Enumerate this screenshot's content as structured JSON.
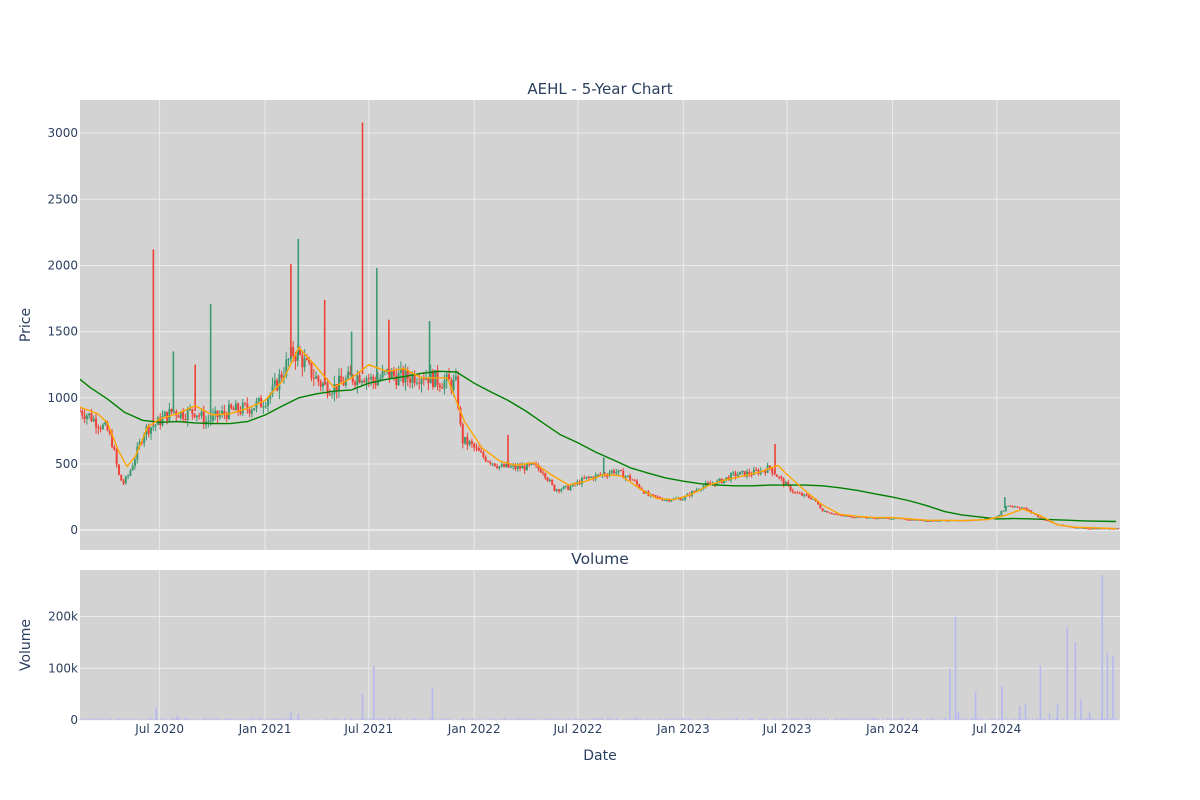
{
  "chart_data": {
    "title": "AEHL - 5-Year Chart",
    "type": "candlestick",
    "grid": true,
    "colors": {
      "plot_bg": "#d3d3d3",
      "grid": "#ebebeb",
      "increasing": "#3d9970",
      "decreasing": "#ef4136",
      "ma_short": "#ffa500",
      "ma_long": "#008000",
      "volume": "#b8b8f0",
      "text": "#2a3f5f"
    },
    "price_panel": {
      "ylabel": "Price",
      "ylim": [
        -150,
        3250
      ],
      "yticks": [
        0,
        500,
        1000,
        1500,
        2000,
        2500,
        3000
      ],
      "ytick_labels": [
        "0",
        "500",
        "1000",
        "1500",
        "2000",
        "2500",
        "3000"
      ],
      "close_series": [
        [
          "2020-02-13",
          900
        ],
        [
          "2020-02-28",
          870
        ],
        [
          "2020-03-15",
          810
        ],
        [
          "2020-03-31",
          760
        ],
        [
          "2020-04-10",
          650
        ],
        [
          "2020-04-20",
          420
        ],
        [
          "2020-04-28",
          350
        ],
        [
          "2020-05-08",
          420
        ],
        [
          "2020-05-20",
          560
        ],
        [
          "2020-06-05",
          760
        ],
        [
          "2020-06-25",
          800
        ],
        [
          "2020-07-10",
          860
        ],
        [
          "2020-07-25",
          900
        ],
        [
          "2020-08-10",
          880
        ],
        [
          "2020-09-01",
          900
        ],
        [
          "2020-09-20",
          820
        ],
        [
          "2020-10-10",
          860
        ],
        [
          "2020-11-01",
          900
        ],
        [
          "2020-12-01",
          920
        ],
        [
          "2020-12-25",
          960
        ],
        [
          "2021-01-15",
          1050
        ],
        [
          "2021-02-01",
          1200
        ],
        [
          "2021-02-20",
          1350
        ],
        [
          "2021-03-05",
          1300
        ],
        [
          "2021-03-20",
          1200
        ],
        [
          "2021-04-10",
          1100
        ],
        [
          "2021-05-01",
          1080
        ],
        [
          "2021-06-01",
          1150
        ],
        [
          "2021-06-20",
          1180
        ],
        [
          "2021-07-10",
          1120
        ],
        [
          "2021-08-01",
          1180
        ],
        [
          "2021-09-01",
          1150
        ],
        [
          "2021-10-01",
          1180
        ],
        [
          "2021-11-01",
          1130
        ],
        [
          "2021-12-01",
          1100
        ],
        [
          "2021-12-10",
          680
        ],
        [
          "2021-12-25",
          650
        ],
        [
          "2022-01-15",
          560
        ],
        [
          "2022-02-15",
          480
        ],
        [
          "2022-03-15",
          470
        ],
        [
          "2022-04-15",
          480
        ],
        [
          "2022-05-01",
          450
        ],
        [
          "2022-05-20",
          310
        ],
        [
          "2022-06-15",
          320
        ],
        [
          "2022-07-15",
          390
        ],
        [
          "2022-08-15",
          420
        ],
        [
          "2022-09-01",
          450
        ],
        [
          "2022-10-01",
          390
        ],
        [
          "2022-11-01",
          260
        ],
        [
          "2022-12-01",
          230
        ],
        [
          "2023-01-01",
          240
        ],
        [
          "2023-02-01",
          330
        ],
        [
          "2023-03-01",
          360
        ],
        [
          "2023-04-01",
          420
        ],
        [
          "2023-05-01",
          430
        ],
        [
          "2023-06-01",
          470
        ],
        [
          "2023-06-20",
          380
        ],
        [
          "2023-07-15",
          280
        ],
        [
          "2023-08-15",
          240
        ],
        [
          "2023-09-01",
          150
        ],
        [
          "2023-10-01",
          110
        ],
        [
          "2023-11-01",
          100
        ],
        [
          "2023-12-01",
          90
        ],
        [
          "2024-01-01",
          90
        ],
        [
          "2024-02-01",
          80
        ],
        [
          "2024-03-01",
          70
        ],
        [
          "2024-04-01",
          75
        ],
        [
          "2024-05-01",
          70
        ],
        [
          "2024-06-01",
          80
        ],
        [
          "2024-07-01",
          100
        ],
        [
          "2024-07-20",
          190
        ],
        [
          "2024-08-15",
          170
        ],
        [
          "2024-09-01",
          130
        ],
        [
          "2024-09-15",
          90
        ],
        [
          "2024-10-15",
          40
        ],
        [
          "2024-11-15",
          20
        ],
        [
          "2024-12-15",
          12
        ],
        [
          "2025-01-25",
          10
        ]
      ],
      "spikes": [
        [
          "2020-06-20",
          2120
        ],
        [
          "2020-07-25",
          1350
        ],
        [
          "2020-09-01",
          1250
        ],
        [
          "2020-09-28",
          1710
        ],
        [
          "2021-02-15",
          2010
        ],
        [
          "2021-02-28",
          2200
        ],
        [
          "2021-04-15",
          1740
        ],
        [
          "2021-06-01",
          1500
        ],
        [
          "2021-06-20",
          3080
        ],
        [
          "2021-07-15",
          1980
        ],
        [
          "2021-08-05",
          1590
        ],
        [
          "2021-10-15",
          1580
        ],
        [
          "2022-03-01",
          720
        ],
        [
          "2022-08-15",
          550
        ],
        [
          "2023-06-10",
          650
        ],
        [
          "2024-07-15",
          250
        ]
      ],
      "ma_short": [
        [
          "2020-02-13",
          930
        ],
        [
          "2020-03-15",
          880
        ],
        [
          "2020-04-01",
          810
        ],
        [
          "2020-04-20",
          600
        ],
        [
          "2020-05-05",
          480
        ],
        [
          "2020-05-20",
          560
        ],
        [
          "2020-06-10",
          780
        ],
        [
          "2020-07-01",
          840
        ],
        [
          "2020-08-01",
          880
        ],
        [
          "2020-09-01",
          940
        ],
        [
          "2020-10-01",
          870
        ],
        [
          "2020-11-01",
          880
        ],
        [
          "2020-12-01",
          920
        ],
        [
          "2021-01-01",
          980
        ],
        [
          "2021-02-01",
          1130
        ],
        [
          "2021-03-01",
          1380
        ],
        [
          "2021-04-01",
          1230
        ],
        [
          "2021-05-01",
          1080
        ],
        [
          "2021-06-01",
          1150
        ],
        [
          "2021-07-01",
          1250
        ],
        [
          "2021-08-01",
          1200
        ],
        [
          "2021-09-01",
          1220
        ],
        [
          "2021-10-01",
          1150
        ],
        [
          "2021-11-15",
          1150
        ],
        [
          "2021-12-15",
          820
        ],
        [
          "2022-01-15",
          620
        ],
        [
          "2022-02-15",
          520
        ],
        [
          "2022-03-15",
          490
        ],
        [
          "2022-04-15",
          510
        ],
        [
          "2022-05-15",
          420
        ],
        [
          "2022-06-15",
          340
        ],
        [
          "2022-07-15",
          370
        ],
        [
          "2022-08-15",
          420
        ],
        [
          "2022-09-15",
          410
        ],
        [
          "2022-10-15",
          320
        ],
        [
          "2022-11-15",
          240
        ],
        [
          "2022-12-15",
          230
        ],
        [
          "2023-01-15",
          270
        ],
        [
          "2023-02-15",
          340
        ],
        [
          "2023-03-15",
          380
        ],
        [
          "2023-04-15",
          410
        ],
        [
          "2023-05-15",
          440
        ],
        [
          "2023-06-15",
          490
        ],
        [
          "2023-07-01",
          420
        ],
        [
          "2023-08-01",
          300
        ],
        [
          "2023-09-01",
          190
        ],
        [
          "2023-10-01",
          120
        ],
        [
          "2023-11-01",
          105
        ],
        [
          "2023-12-01",
          95
        ],
        [
          "2024-01-01",
          95
        ],
        [
          "2024-03-01",
          75
        ],
        [
          "2024-05-01",
          72
        ],
        [
          "2024-06-15",
          80
        ],
        [
          "2024-07-15",
          110
        ],
        [
          "2024-08-15",
          160
        ],
        [
          "2024-09-15",
          110
        ],
        [
          "2024-10-15",
          40
        ],
        [
          "2024-11-15",
          22
        ],
        [
          "2025-01-25",
          12
        ]
      ],
      "ma_long": [
        [
          "2020-02-13",
          1140
        ],
        [
          "2020-03-01",
          1080
        ],
        [
          "2020-04-01",
          990
        ],
        [
          "2020-05-01",
          890
        ],
        [
          "2020-06-01",
          830
        ],
        [
          "2020-07-01",
          815
        ],
        [
          "2020-08-01",
          820
        ],
        [
          "2020-09-01",
          810
        ],
        [
          "2020-10-01",
          805
        ],
        [
          "2020-11-01",
          805
        ],
        [
          "2020-12-01",
          820
        ],
        [
          "2021-01-01",
          870
        ],
        [
          "2021-02-01",
          940
        ],
        [
          "2021-03-01",
          1000
        ],
        [
          "2021-04-01",
          1030
        ],
        [
          "2021-05-01",
          1050
        ],
        [
          "2021-06-01",
          1060
        ],
        [
          "2021-07-01",
          1110
        ],
        [
          "2021-08-01",
          1140
        ],
        [
          "2021-09-01",
          1160
        ],
        [
          "2021-10-01",
          1185
        ],
        [
          "2021-11-01",
          1200
        ],
        [
          "2021-12-01",
          1195
        ],
        [
          "2022-01-01",
          1110
        ],
        [
          "2022-02-01",
          1040
        ],
        [
          "2022-03-01",
          980
        ],
        [
          "2022-04-01",
          900
        ],
        [
          "2022-05-01",
          810
        ],
        [
          "2022-06-01",
          720
        ],
        [
          "2022-07-01",
          660
        ],
        [
          "2022-08-01",
          590
        ],
        [
          "2022-09-01",
          530
        ],
        [
          "2022-10-01",
          470
        ],
        [
          "2022-11-01",
          430
        ],
        [
          "2022-12-01",
          395
        ],
        [
          "2023-01-01",
          370
        ],
        [
          "2023-02-01",
          350
        ],
        [
          "2023-03-01",
          340
        ],
        [
          "2023-04-01",
          335
        ],
        [
          "2023-05-01",
          335
        ],
        [
          "2023-06-01",
          340
        ],
        [
          "2023-07-01",
          340
        ],
        [
          "2023-08-01",
          340
        ],
        [
          "2023-09-01",
          335
        ],
        [
          "2023-10-01",
          320
        ],
        [
          "2023-11-01",
          300
        ],
        [
          "2023-12-01",
          275
        ],
        [
          "2024-01-01",
          250
        ],
        [
          "2024-02-01",
          220
        ],
        [
          "2024-03-01",
          185
        ],
        [
          "2024-04-01",
          140
        ],
        [
          "2024-05-01",
          115
        ],
        [
          "2024-06-01",
          100
        ],
        [
          "2024-07-01",
          85
        ],
        [
          "2024-08-01",
          88
        ],
        [
          "2024-09-01",
          85
        ],
        [
          "2024-10-01",
          80
        ],
        [
          "2024-11-01",
          75
        ],
        [
          "2024-12-01",
          70
        ],
        [
          "2025-01-25",
          65
        ]
      ]
    },
    "volume_panel": {
      "title": "Volume",
      "ylabel": "Volume",
      "ylim": [
        0,
        290000
      ],
      "yticks": [
        0,
        100000,
        200000
      ],
      "ytick_labels": [
        "0",
        "100k",
        "200k"
      ],
      "bars": [
        [
          "2020-06-25",
          25000
        ],
        [
          "2020-08-01",
          8000
        ],
        [
          "2021-02-15",
          15000
        ],
        [
          "2021-02-28",
          12000
        ],
        [
          "2021-06-20",
          50000
        ],
        [
          "2021-07-10",
          105000
        ],
        [
          "2021-10-20",
          62000
        ],
        [
          "2022-10-10",
          5000
        ],
        [
          "2024-04-10",
          100000
        ],
        [
          "2024-04-20",
          200000
        ],
        [
          "2024-04-25",
          15000
        ],
        [
          "2024-05-25",
          55000
        ],
        [
          "2024-07-10",
          65000
        ],
        [
          "2024-08-10",
          28000
        ],
        [
          "2024-08-20",
          32000
        ],
        [
          "2024-09-15",
          105000
        ],
        [
          "2024-10-01",
          12000
        ],
        [
          "2024-10-15",
          30000
        ],
        [
          "2024-11-01",
          180000
        ],
        [
          "2024-11-15",
          150000
        ],
        [
          "2024-11-25",
          40000
        ],
        [
          "2024-12-10",
          15000
        ],
        [
          "2025-01-01",
          280000
        ],
        [
          "2025-01-10",
          130000
        ],
        [
          "2025-01-20",
          125000
        ]
      ]
    },
    "x_axis": {
      "xlabel": "Date",
      "range": [
        "2020-02-13",
        "2025-02-01"
      ],
      "ticks": [
        "2020-07-01",
        "2021-01-01",
        "2021-07-01",
        "2022-01-01",
        "2022-07-01",
        "2023-01-01",
        "2023-07-01",
        "2024-01-01",
        "2024-07-01"
      ],
      "tick_labels": [
        "Jul 2020",
        "Jan 2021",
        "Jul 2021",
        "Jan 2022",
        "Jul 2022",
        "Jan 2023",
        "Jul 2023",
        "Jan 2024",
        "Jul 2024"
      ]
    }
  }
}
